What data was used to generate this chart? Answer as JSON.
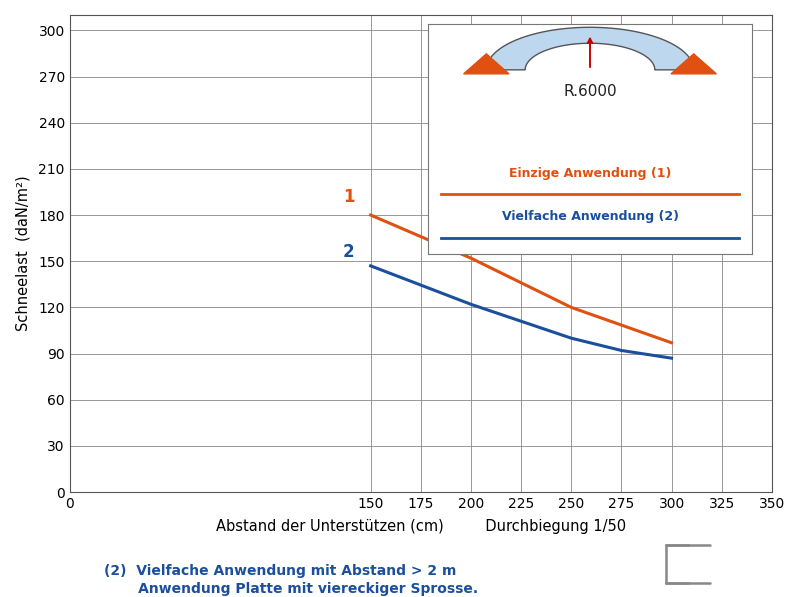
{
  "line1_x": [
    150,
    200,
    250,
    300
  ],
  "line1_y": [
    180,
    152,
    120,
    97
  ],
  "line2_x": [
    150,
    200,
    250,
    275,
    300
  ],
  "line2_y": [
    147,
    122,
    100,
    92,
    87
  ],
  "line1_color": "#E05010",
  "line2_color": "#1B4F9C",
  "line1_label": "Einzige Anwendung (1)",
  "line2_label": "Vielfache Anwendung (2)",
  "line1_tag": "1",
  "line2_tag": "2",
  "xlabel": "Abstand der Unterstützen (cm)         Durchbiegung 1/50",
  "ylabel": "Schneelast  (daN/m²)",
  "xlim": [
    0,
    350
  ],
  "ylim": [
    0,
    310
  ],
  "xtick_positions": [
    0,
    150,
    175,
    200,
    225,
    250,
    275,
    300,
    325,
    350
  ],
  "xtick_labels": [
    "0",
    "150",
    "175",
    "200",
    "225",
    "250",
    "275",
    "300",
    "325",
    "350"
  ],
  "yticks": [
    0,
    30,
    60,
    90,
    120,
    150,
    180,
    210,
    240,
    270,
    300
  ],
  "grid_color": "#888888",
  "background_color": "#FFFFFF",
  "footnote_color": "#1B4F9C",
  "footnote_line1": "(2)  Vielfache Anwendung mit Abstand > 2 m",
  "footnote_line2": "       Anwendung Platte mit viereckiger Sprosse.",
  "legend_title": "R.6000",
  "legend_title_color": "#222222",
  "arc_color": "#BDD7EE",
  "triangle_color": "#E05010",
  "needle_color": "#CC0000"
}
